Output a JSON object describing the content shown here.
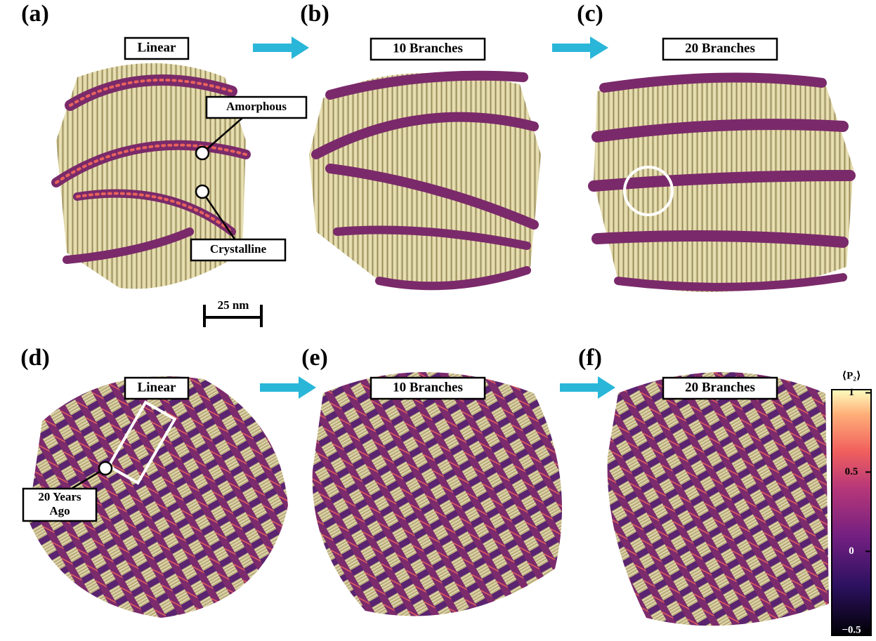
{
  "panels": [
    {
      "label": "(a)",
      "tag": "Linear"
    },
    {
      "label": "(b)",
      "tag": "10 Branches"
    },
    {
      "label": "(c)",
      "tag": "20 Branches"
    },
    {
      "label": "(d)",
      "tag": "Linear"
    },
    {
      "label": "(e)",
      "tag": "10 Branches"
    },
    {
      "label": "(f)",
      "tag": "20 Branches"
    }
  ],
  "annotations": {
    "amorphous": "Amorphous",
    "crystalline": "Crystalline",
    "scale_bar": "25 nm",
    "history": [
      "20 Years",
      "Ago"
    ]
  },
  "colorbar": {
    "label": "⟨P₂⟩",
    "lim": [
      -0.53,
      1.02
    ],
    "ticks": [
      1,
      0.5,
      0,
      {
        "value": -0.5,
        "label": "−0.5"
      }
    ]
  }
}
